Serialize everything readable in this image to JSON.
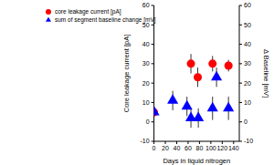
{
  "chart_data": {
    "type": "scatter",
    "x_label": "Days in liquid nitrogen",
    "y_label": "Core leakage current [pA]",
    "y2_label": "Δ Baseline [mV]",
    "xlim": [
      0,
      150
    ],
    "xticks": [
      0,
      20,
      40,
      60,
      80,
      100,
      120,
      140
    ],
    "ylim": [
      -10,
      60
    ],
    "yticks": [
      -10,
      0,
      10,
      20,
      30,
      40,
      50,
      60
    ],
    "y2lim": [
      -10,
      60
    ],
    "y2ticks": [
      -10,
      0,
      10,
      20,
      30,
      40,
      50,
      60
    ],
    "legend": "upper left",
    "series": [
      {
        "name": "core leakage current [pA]",
        "color": "#ff0000",
        "marker": "circle",
        "x": [
          0,
          65,
          77,
          103,
          131
        ],
        "values": [
          5,
          30,
          23,
          30,
          29
        ],
        "errors": [
          1,
          5,
          5,
          4,
          3
        ]
      },
      {
        "name": "sum of segment baseline change [mV]",
        "color": "#0000ff",
        "marker": "triangle",
        "axis": "y2",
        "x": [
          0,
          33,
          58,
          65,
          78,
          103,
          110,
          131
        ],
        "values": [
          5,
          11,
          8,
          2,
          2,
          7,
          23,
          7
        ],
        "errors": [
          3,
          5,
          5,
          5,
          5,
          6,
          5,
          6
        ]
      }
    ]
  }
}
